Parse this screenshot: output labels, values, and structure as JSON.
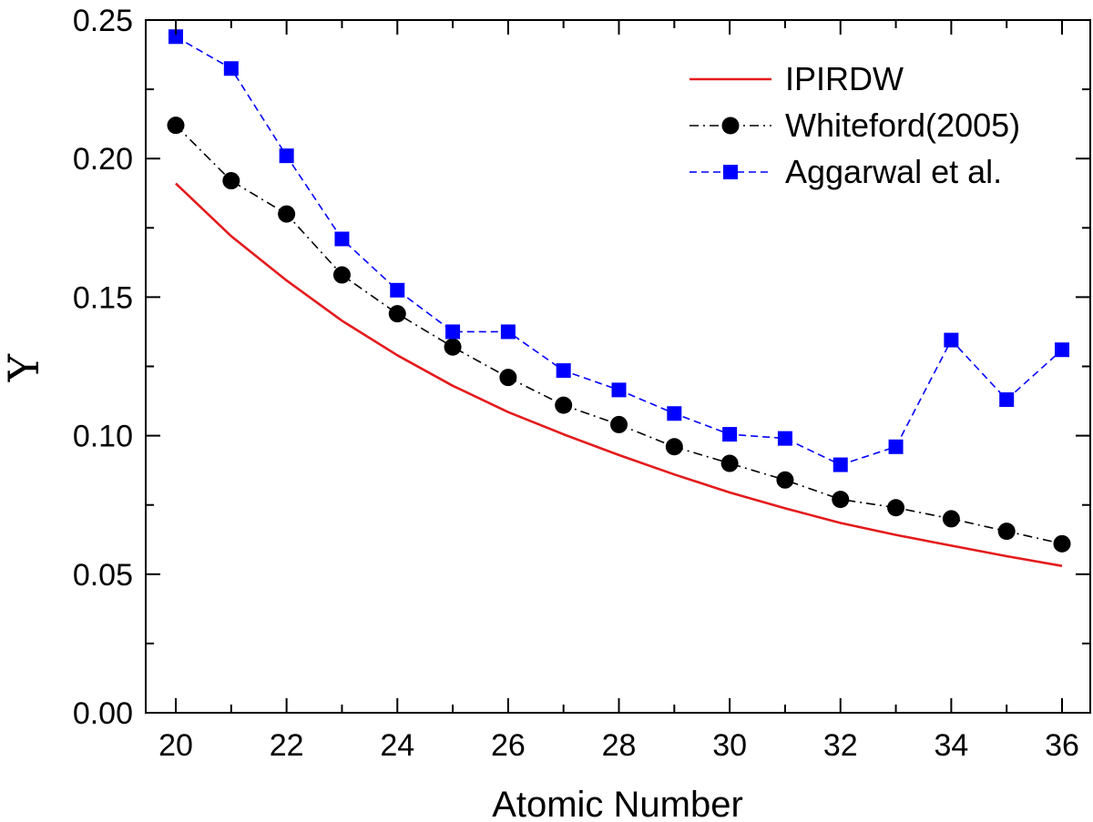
{
  "chart_data": {
    "type": "line",
    "title": "",
    "xlabel": "Atomic Number",
    "ylabel": "Υ",
    "xlim": [
      19.5,
      36.5
    ],
    "ylim": [
      0,
      0.25
    ],
    "xticks": [
      20,
      22,
      24,
      26,
      28,
      30,
      32,
      34,
      36
    ],
    "xtick_labels": [
      "20",
      "22",
      "24",
      "26",
      "28",
      "30",
      "32",
      "34",
      "36"
    ],
    "yticks": [
      0.0,
      0.05,
      0.1,
      0.15,
      0.2,
      0.25
    ],
    "ytick_labels": [
      "0.00",
      "0.05",
      "0.10",
      "0.15",
      "0.20",
      "0.25"
    ],
    "grid": false,
    "legend_position": "top-right",
    "series": [
      {
        "name": "IPIRDW",
        "color": "#e41a1c",
        "style": "solid",
        "marker": "none",
        "x": [
          20,
          21,
          22,
          23,
          24,
          25,
          26,
          27,
          28,
          29,
          30,
          31,
          32,
          33,
          34,
          35,
          36
        ],
        "values": [
          0.191,
          0.172,
          0.156,
          0.1415,
          0.129,
          0.118,
          0.1085,
          0.1005,
          0.093,
          0.086,
          0.0795,
          0.0738,
          0.0685,
          0.0642,
          0.0603,
          0.0565,
          0.053
        ]
      },
      {
        "name": "Whiteford(2005)",
        "color": "#000000",
        "style": "dashdot",
        "marker": "circle",
        "x": [
          20,
          21,
          22,
          23,
          24,
          25,
          26,
          27,
          28,
          29,
          30,
          31,
          32,
          33,
          34,
          35,
          36
        ],
        "values": [
          0.212,
          0.192,
          0.18,
          0.158,
          0.144,
          0.132,
          0.121,
          0.111,
          0.104,
          0.096,
          0.09,
          0.084,
          0.077,
          0.074,
          0.07,
          0.0655,
          0.061
        ]
      },
      {
        "name": "Aggarwal et al.",
        "color": "#0000ff",
        "style": "dashed",
        "marker": "square",
        "x": [
          20,
          21,
          22,
          23,
          24,
          25,
          26,
          27,
          28,
          29,
          30,
          31,
          32,
          33,
          34,
          35,
          36
        ],
        "values": [
          0.244,
          0.2325,
          0.201,
          0.171,
          0.1525,
          0.1375,
          0.1375,
          0.1235,
          0.1165,
          0.108,
          0.1005,
          0.099,
          0.0895,
          0.096,
          0.1345,
          0.113,
          0.131
        ]
      }
    ]
  }
}
